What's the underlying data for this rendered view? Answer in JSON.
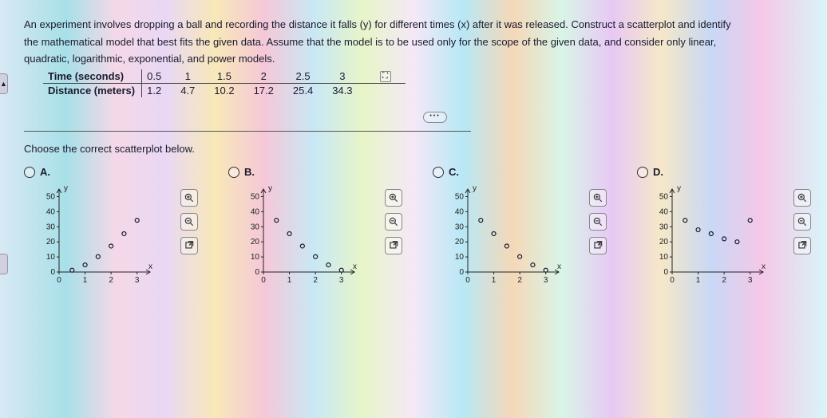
{
  "question": {
    "line1": "An experiment involves dropping a ball and recording the distance it falls (y) for different times (x) after it was released. Construct a scatterplot and identify",
    "line2": "the mathematical model that best fits the given data. Assume that the model is to be used only for the scope of the given data, and consider only linear,",
    "line3": "quadratic, logarithmic, exponential, and power models."
  },
  "table": {
    "row1_label": "Time (seconds)",
    "row2_label": "Distance (meters)",
    "x": [
      0.5,
      1,
      1.5,
      2,
      2.5,
      3
    ],
    "y": [
      1.2,
      4.7,
      10.2,
      17.2,
      25.4,
      34.3
    ]
  },
  "prompt": "Choose the correct scatterplot below.",
  "plot_config": {
    "xlim": [
      0,
      3.5
    ],
    "ylim": [
      0,
      55
    ],
    "xticks": [
      0,
      1,
      2,
      3
    ],
    "yticks": [
      0,
      10,
      20,
      30,
      40,
      50
    ],
    "xlabel": "x",
    "ylabel": "y",
    "axis_color": "#222",
    "tick_font": 10,
    "point_color": "#1a1a2e",
    "point_radius": 2.5
  },
  "choices": {
    "A": {
      "label": "A.",
      "points": [
        [
          0.5,
          1.2
        ],
        [
          1,
          4.7
        ],
        [
          1.5,
          10.2
        ],
        [
          2,
          17.2
        ],
        [
          2.5,
          25.4
        ],
        [
          3,
          34.3
        ]
      ]
    },
    "B": {
      "label": "B.",
      "points": [
        [
          0.5,
          34.3
        ],
        [
          1,
          25.4
        ],
        [
          1.5,
          17.2
        ],
        [
          2,
          10.2
        ],
        [
          2.5,
          4.7
        ],
        [
          3,
          1.2
        ]
      ]
    },
    "C": {
      "label": "C.",
      "points": [
        [
          3,
          1.2
        ],
        [
          2.5,
          4.7
        ],
        [
          2,
          10.2
        ],
        [
          1.5,
          17.2
        ],
        [
          1,
          25.4
        ],
        [
          0.5,
          34.3
        ]
      ]
    },
    "D": {
      "label": "D.",
      "points": [
        [
          0.5,
          34.3
        ],
        [
          1,
          28
        ],
        [
          1.5,
          25.4
        ],
        [
          2,
          22
        ],
        [
          2.5,
          20
        ],
        [
          3,
          34.3
        ]
      ]
    }
  }
}
